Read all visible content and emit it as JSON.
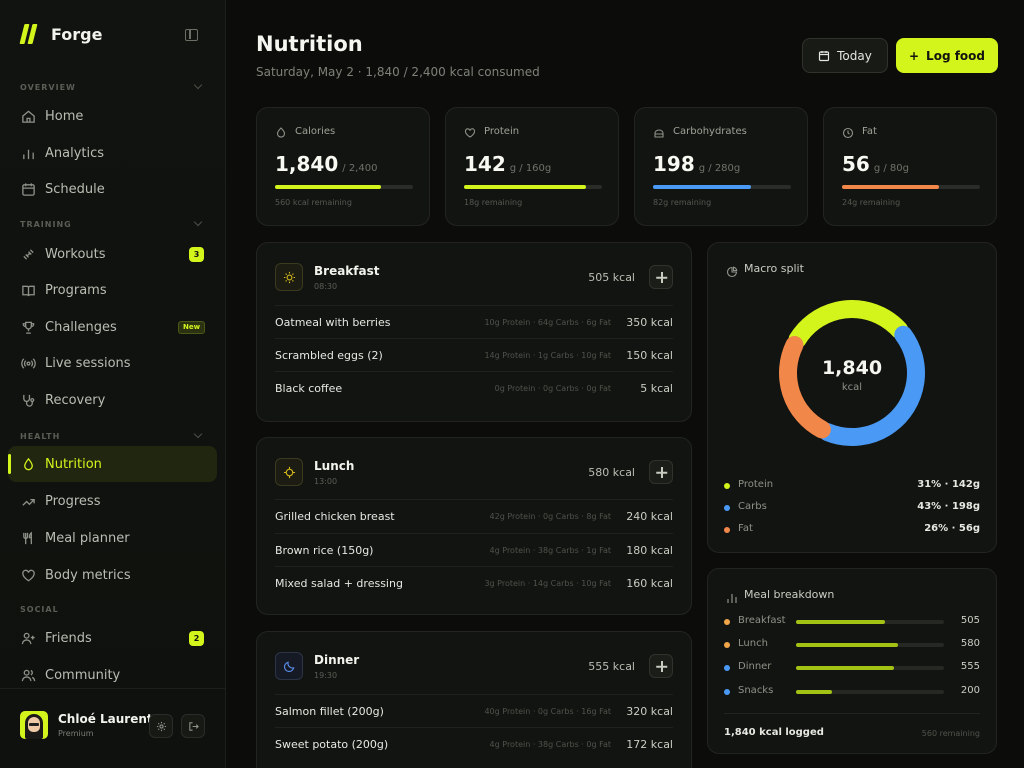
{
  "app": {
    "name": "Forge"
  },
  "sidebar": {
    "sections": [
      {
        "label": "OVERVIEW"
      },
      {
        "label": "TRAINING"
      },
      {
        "label": "HEALTH"
      },
      {
        "label": "SOCIAL"
      }
    ],
    "items": [
      {
        "label": "Home",
        "icon": "home-icon"
      },
      {
        "label": "Analytics",
        "icon": "analytics-icon"
      },
      {
        "label": "Schedule",
        "icon": "calendar-icon"
      },
      {
        "label": "Workouts",
        "icon": "dumbbell-icon",
        "badge": "3"
      },
      {
        "label": "Programs",
        "icon": "book-icon"
      },
      {
        "label": "Challenges",
        "icon": "trophy-icon",
        "badge": "New"
      },
      {
        "label": "Live sessions",
        "icon": "broadcast-icon"
      },
      {
        "label": "Recovery",
        "icon": "stethoscope-icon"
      },
      {
        "label": "Nutrition",
        "icon": "drop-icon",
        "active": true
      },
      {
        "label": "Progress",
        "icon": "trend-icon"
      },
      {
        "label": "Meal planner",
        "icon": "utensils-icon"
      },
      {
        "label": "Body metrics",
        "icon": "heart-icon"
      },
      {
        "label": "Friends",
        "icon": "user-plus-icon",
        "badge": "2"
      },
      {
        "label": "Community",
        "icon": "users-icon"
      }
    ],
    "user": {
      "name": "Chloé Laurent",
      "plan": "Premium"
    }
  },
  "header": {
    "title": "Nutrition",
    "subtitle": "Saturday, May 2  ·  1,840 / 2,400 kcal consumed",
    "today_label": "Today",
    "log_label": "Log food"
  },
  "stats": [
    {
      "label": "Calories",
      "value": "1,840",
      "target": "/  2,400",
      "remaining": "560 kcal remaining",
      "fraction": 0.767,
      "color": "#d4f51c"
    },
    {
      "label": "Protein",
      "value": "142",
      "target": "g  /  160g",
      "remaining": "18g remaining",
      "fraction": 0.8875,
      "color": "#d4f51c"
    },
    {
      "label": "Carbohydrates",
      "value": "198",
      "target": "g  /  280g",
      "remaining": "82g remaining",
      "fraction": 0.707,
      "color": "#4a9af5"
    },
    {
      "label": "Fat",
      "value": "56",
      "target": "g  /  80g",
      "remaining": "24g remaining",
      "fraction": 0.7,
      "color": "#f2874a"
    }
  ],
  "meals": [
    {
      "name": "Breakfast",
      "time": "08:30",
      "kcal": "505 kcal",
      "icon": "sun-icon",
      "items": [
        {
          "food": "Oatmeal with berries",
          "macros": "10g Protein · 64g Carbs · 6g Fat",
          "kcal": "350 kcal"
        },
        {
          "food": "Scrambled eggs (2)",
          "macros": "14g Protein · 1g Carbs · 10g Fat",
          "kcal": "150 kcal"
        },
        {
          "food": "Black coffee",
          "macros": "0g Protein · 0g Carbs · 0g Fat",
          "kcal": "5 kcal"
        }
      ]
    },
    {
      "name": "Lunch",
      "time": "13:00",
      "kcal": "580 kcal",
      "icon": "crosshair-icon",
      "items": [
        {
          "food": "Grilled chicken breast",
          "macros": "42g Protein · 0g Carbs · 8g Fat",
          "kcal": "240 kcal"
        },
        {
          "food": "Brown rice (150g)",
          "macros": "4g Protein · 38g Carbs · 1g Fat",
          "kcal": "180 kcal"
        },
        {
          "food": "Mixed salad + dressing",
          "macros": "3g Protein · 14g Carbs · 10g Fat",
          "kcal": "160 kcal"
        }
      ]
    },
    {
      "name": "Dinner",
      "time": "19:30",
      "kcal": "555 kcal",
      "icon": "moon-icon",
      "items": [
        {
          "food": "Salmon fillet (200g)",
          "macros": "40g Protein · 0g Carbs · 16g Fat",
          "kcal": "320 kcal"
        },
        {
          "food": "Sweet potato (200g)",
          "macros": "4g Protein · 38g Carbs · 0g Fat",
          "kcal": "172 kcal"
        }
      ]
    }
  ],
  "macro_split": {
    "title": "Macro split",
    "center_value": "1,840",
    "center_unit": "kcal",
    "legend": [
      {
        "name": "Protein",
        "value": "31% · 142g",
        "percent": 31,
        "color": "#d4f51c"
      },
      {
        "name": "Carbs",
        "value": "43% · 198g",
        "percent": 43,
        "color": "#4a9af5"
      },
      {
        "name": "Fat",
        "value": "26% · 56g",
        "percent": 26,
        "color": "#f2874a"
      }
    ]
  },
  "meal_breakdown": {
    "title": "Meal breakdown",
    "rows": [
      {
        "name": "Breakfast",
        "value": "505",
        "fraction": 0.6,
        "color": "#f2a64a"
      },
      {
        "name": "Lunch",
        "value": "580",
        "fraction": 0.69,
        "color": "#f2a64a"
      },
      {
        "name": "Dinner",
        "value": "555",
        "fraction": 0.66,
        "color": "#4a9af5"
      },
      {
        "name": "Snacks",
        "value": "200",
        "fraction": 0.24,
        "color": "#4a9af5"
      }
    ],
    "footer_logged": "1,840 kcal logged",
    "footer_remaining": "560 remaining"
  }
}
